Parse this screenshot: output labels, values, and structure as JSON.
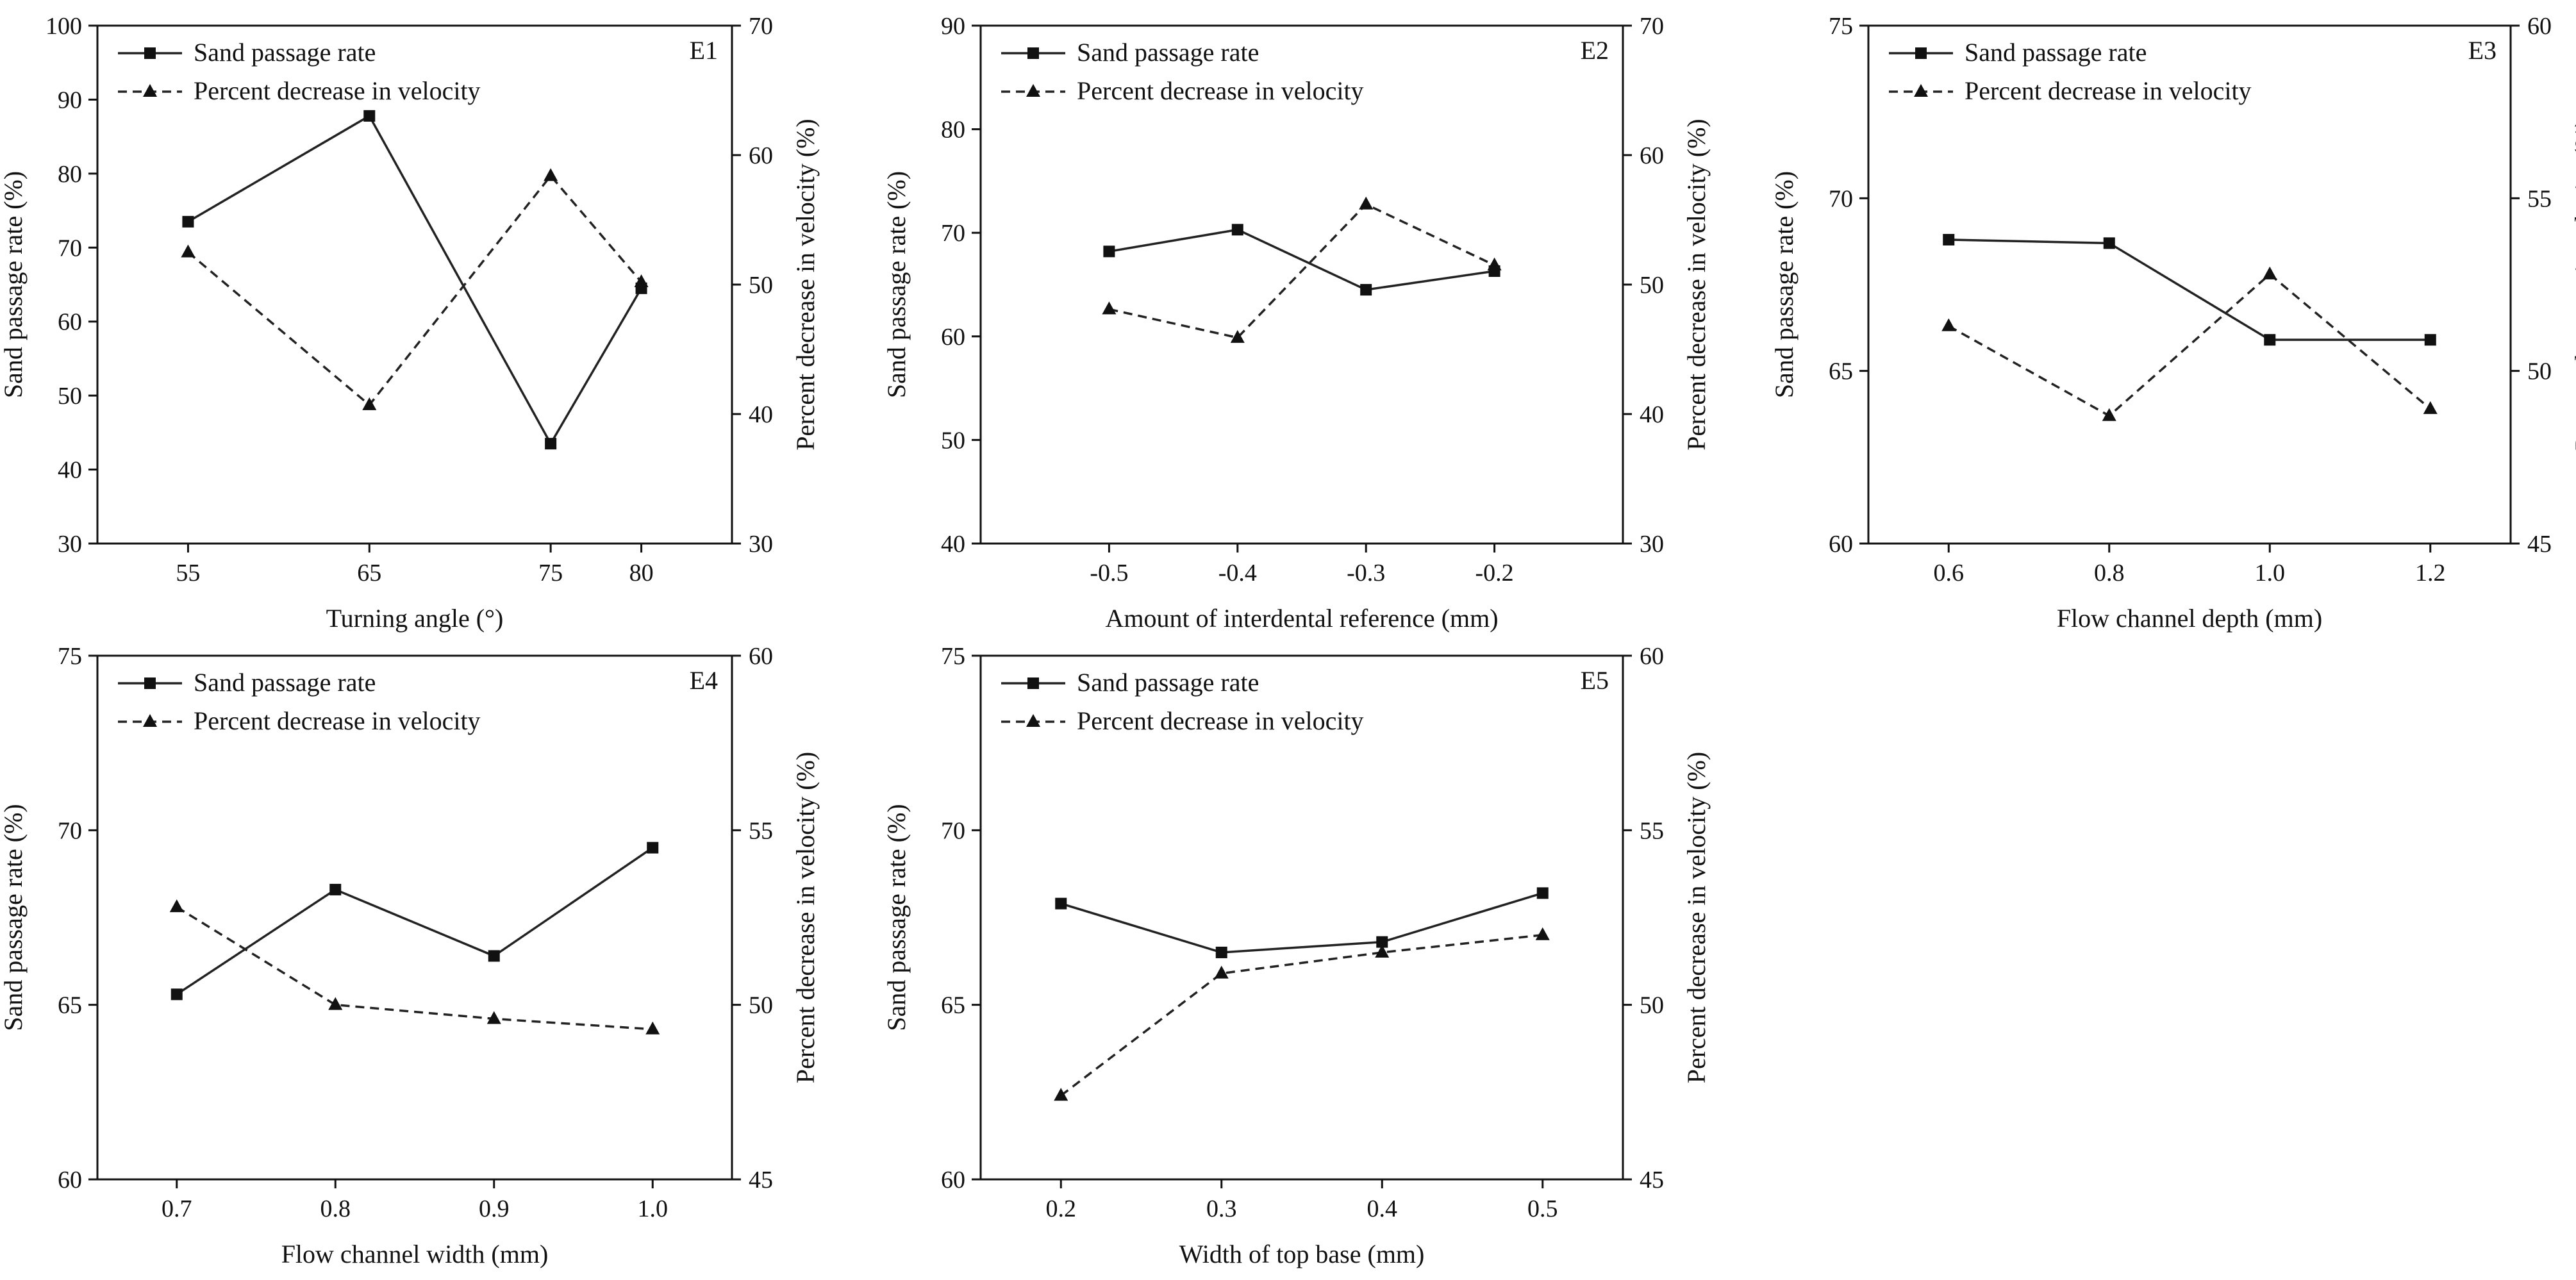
{
  "chart_data": [
    {
      "id": "E1",
      "type": "line",
      "panel_label": "E1",
      "xlabel": "Turning angle (°)",
      "ylabel_left": "Sand passage rate (%)",
      "ylabel_right": "Percent decrease in velocity (%)",
      "x": [
        55,
        65,
        75,
        80
      ],
      "x_ticks": [
        "55",
        "65",
        "75",
        "80"
      ],
      "xlim": [
        50,
        85
      ],
      "ylim_left": [
        30,
        100
      ],
      "yticks_left": [
        30,
        40,
        50,
        60,
        70,
        80,
        90,
        100
      ],
      "ylim_right": [
        30,
        70
      ],
      "yticks_right": [
        30,
        40,
        50,
        60,
        70
      ],
      "series": [
        {
          "name": "Sand passage rate",
          "axis": "left",
          "style": "solid",
          "marker": "square",
          "values": [
            73.5,
            87.8,
            43.5,
            64.5
          ]
        },
        {
          "name": "Percent decrease in velocity",
          "axis": "right",
          "style": "dashed",
          "marker": "triangle",
          "values": [
            52.5,
            40.7,
            58.4,
            50.2
          ]
        }
      ]
    },
    {
      "id": "E2",
      "type": "line",
      "panel_label": "E2",
      "xlabel": "Amount of interdental reference (mm)",
      "ylabel_left": "Sand passage rate (%)",
      "ylabel_right": "Percent decrease in velocity (%)",
      "x": [
        -0.5,
        -0.4,
        -0.3,
        -0.2
      ],
      "x_ticks": [
        "-0.5",
        "-0.4",
        "-0.3",
        "-0.2"
      ],
      "xlim": [
        -0.6,
        -0.1
      ],
      "ylim_left": [
        40,
        90
      ],
      "yticks_left": [
        40,
        50,
        60,
        70,
        80,
        90
      ],
      "ylim_right": [
        30,
        70
      ],
      "yticks_right": [
        30,
        40,
        50,
        60,
        70
      ],
      "series": [
        {
          "name": "Sand passage rate",
          "axis": "left",
          "style": "solid",
          "marker": "square",
          "values": [
            68.2,
            70.3,
            64.5,
            66.3
          ]
        },
        {
          "name": "Percent decrease in velocity",
          "axis": "right",
          "style": "dashed",
          "marker": "triangle",
          "values": [
            48.1,
            45.9,
            56.2,
            51.5
          ]
        }
      ]
    },
    {
      "id": "E3",
      "type": "line",
      "panel_label": "E3",
      "xlabel": "Flow channel depth (mm)",
      "ylabel_left": "Sand passage rate (%)",
      "ylabel_right": "Percent decrease in velocity (%)",
      "x": [
        0.6,
        0.8,
        1.0,
        1.2
      ],
      "x_ticks": [
        "0.6",
        "0.8",
        "1.0",
        "1.2"
      ],
      "xlim": [
        0.5,
        1.3
      ],
      "ylim_left": [
        60,
        75
      ],
      "yticks_left": [
        60,
        65,
        70,
        75
      ],
      "ylim_right": [
        45,
        60
      ],
      "yticks_right": [
        45,
        50,
        55,
        60
      ],
      "series": [
        {
          "name": "Sand passage rate",
          "axis": "left",
          "style": "solid",
          "marker": "square",
          "values": [
            68.8,
            68.7,
            65.9,
            65.9
          ]
        },
        {
          "name": "Percent decrease in velocity",
          "axis": "right",
          "style": "dashed",
          "marker": "triangle",
          "values": [
            51.3,
            48.7,
            52.8,
            48.9
          ]
        }
      ]
    },
    {
      "id": "E4",
      "type": "line",
      "panel_label": "E4",
      "xlabel": "Flow channel width (mm)",
      "ylabel_left": "Sand passage rate (%)",
      "ylabel_right": "Percent decrease in velocity (%)",
      "x": [
        0.7,
        0.8,
        0.9,
        1.0
      ],
      "x_ticks": [
        "0.7",
        "0.8",
        "0.9",
        "1.0"
      ],
      "xlim": [
        0.65,
        1.05
      ],
      "ylim_left": [
        60,
        75
      ],
      "yticks_left": [
        60,
        65,
        70,
        75
      ],
      "ylim_right": [
        45,
        60
      ],
      "yticks_right": [
        45,
        50,
        55,
        60
      ],
      "series": [
        {
          "name": "Sand passage rate",
          "axis": "left",
          "style": "solid",
          "marker": "square",
          "values": [
            65.3,
            68.3,
            66.4,
            69.5
          ]
        },
        {
          "name": "Percent decrease in velocity",
          "axis": "right",
          "style": "dashed",
          "marker": "triangle",
          "values": [
            52.8,
            50.0,
            49.6,
            49.3
          ]
        }
      ]
    },
    {
      "id": "E5",
      "type": "line",
      "panel_label": "E5",
      "xlabel": "Width of top base (mm)",
      "ylabel_left": "Sand passage rate (%)",
      "ylabel_right": "Percent decrease in velocity (%)",
      "x": [
        0.2,
        0.3,
        0.4,
        0.5
      ],
      "x_ticks": [
        "0.2",
        "0.3",
        "0.4",
        "0.5"
      ],
      "xlim": [
        0.15,
        0.55
      ],
      "ylim_left": [
        60,
        75
      ],
      "yticks_left": [
        60,
        65,
        70,
        75
      ],
      "ylim_right": [
        45,
        60
      ],
      "yticks_right": [
        45,
        50,
        55,
        60
      ],
      "series": [
        {
          "name": "Sand passage rate",
          "axis": "left",
          "style": "solid",
          "marker": "square",
          "values": [
            67.9,
            66.5,
            66.8,
            68.2
          ]
        },
        {
          "name": "Percent decrease in velocity",
          "axis": "right",
          "style": "dashed",
          "marker": "triangle",
          "values": [
            47.4,
            50.9,
            51.5,
            52.0
          ]
        }
      ]
    }
  ]
}
